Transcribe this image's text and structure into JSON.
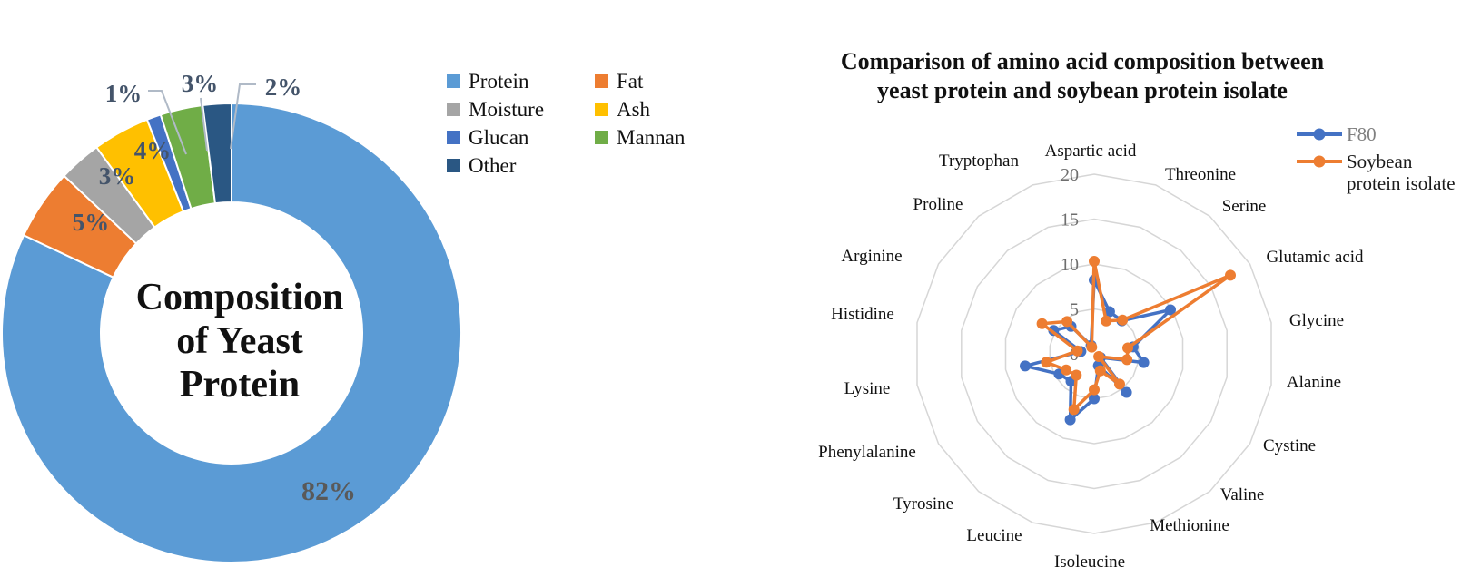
{
  "figure": {
    "background": "#FFFFFF",
    "description_left": "Donut chart of yeast protein composition",
    "description_right": "Radar chart comparing amino acid composition"
  },
  "chart_data": [
    {
      "type": "pie",
      "subtype": "donut",
      "title": "Composition of Yeast Protein",
      "center_label_lines": [
        "Composition",
        "of Yeast",
        "Protein"
      ],
      "categories": [
        "Protein",
        "Fat",
        "Moisture",
        "Ash",
        "Glucan",
        "Mannan",
        "Other"
      ],
      "values": [
        82,
        5,
        3,
        4,
        1,
        3,
        2
      ],
      "percent_labels": [
        "82%",
        "5%",
        "3%",
        "4%",
        "1%",
        "3%",
        "2%"
      ],
      "colors": [
        "#5B9BD5",
        "#ED7D31",
        "#A5A5A5",
        "#FFC000",
        "#4472C4",
        "#70AD47",
        "#2A5783"
      ],
      "label_color": "#44546A",
      "big_label_color": "#595959",
      "legend_position": "right",
      "legend_items": [
        "Protein",
        "Fat",
        "Moisture",
        "Ash",
        "Glucan",
        "Mannan",
        "Other"
      ]
    },
    {
      "type": "radar",
      "title": "Comparison of amino acid composition between yeast protein and soybean protein isolate",
      "title_lines": [
        "Comparison of amino acid composition between",
        "yeast protein and soybean protein isolate"
      ],
      "categories": [
        "Aspartic acid",
        "Threonine",
        "Serine",
        "Glutamic acid",
        "Glycine",
        "Alanine",
        "Cystine",
        "Valine",
        "Methionine",
        "Isoleucine",
        "Leucine",
        "Tyrosine",
        "Phenylalanine",
        "Lysine",
        "Histidine",
        "Arginine",
        "Proline",
        "Tryptophan"
      ],
      "series": [
        {
          "name": "F80",
          "name_lines": [
            "F80"
          ],
          "color": "#4472C4",
          "label_color": "#808080",
          "values": [
            8.2,
            5.0,
            4.8,
            9.8,
            4.4,
            5.6,
            0.8,
            5.6,
            1.4,
            5.0,
            7.8,
            4.0,
            4.5,
            7.8,
            1.5,
            5.2,
            4.0,
            1.0
          ]
        },
        {
          "name": "Soybean protein isolate",
          "name_lines": [
            "Soybean",
            "protein isolate"
          ],
          "color": "#ED7D31",
          "label_color": "#1A1A1A",
          "values": [
            10.3,
            3.9,
            4.9,
            17.5,
            3.8,
            3.7,
            0.6,
            4.4,
            2.0,
            4.0,
            6.6,
            3.1,
            3.6,
            5.4,
            1.9,
            6.7,
            4.7,
            0.8
          ]
        }
      ],
      "rmax": 20,
      "ticks": [
        0,
        5,
        10,
        15,
        20
      ],
      "tick_color": "#6E6E6E",
      "grid": true,
      "grid_color": "#D6D6D6",
      "legend_position": "right"
    }
  ]
}
